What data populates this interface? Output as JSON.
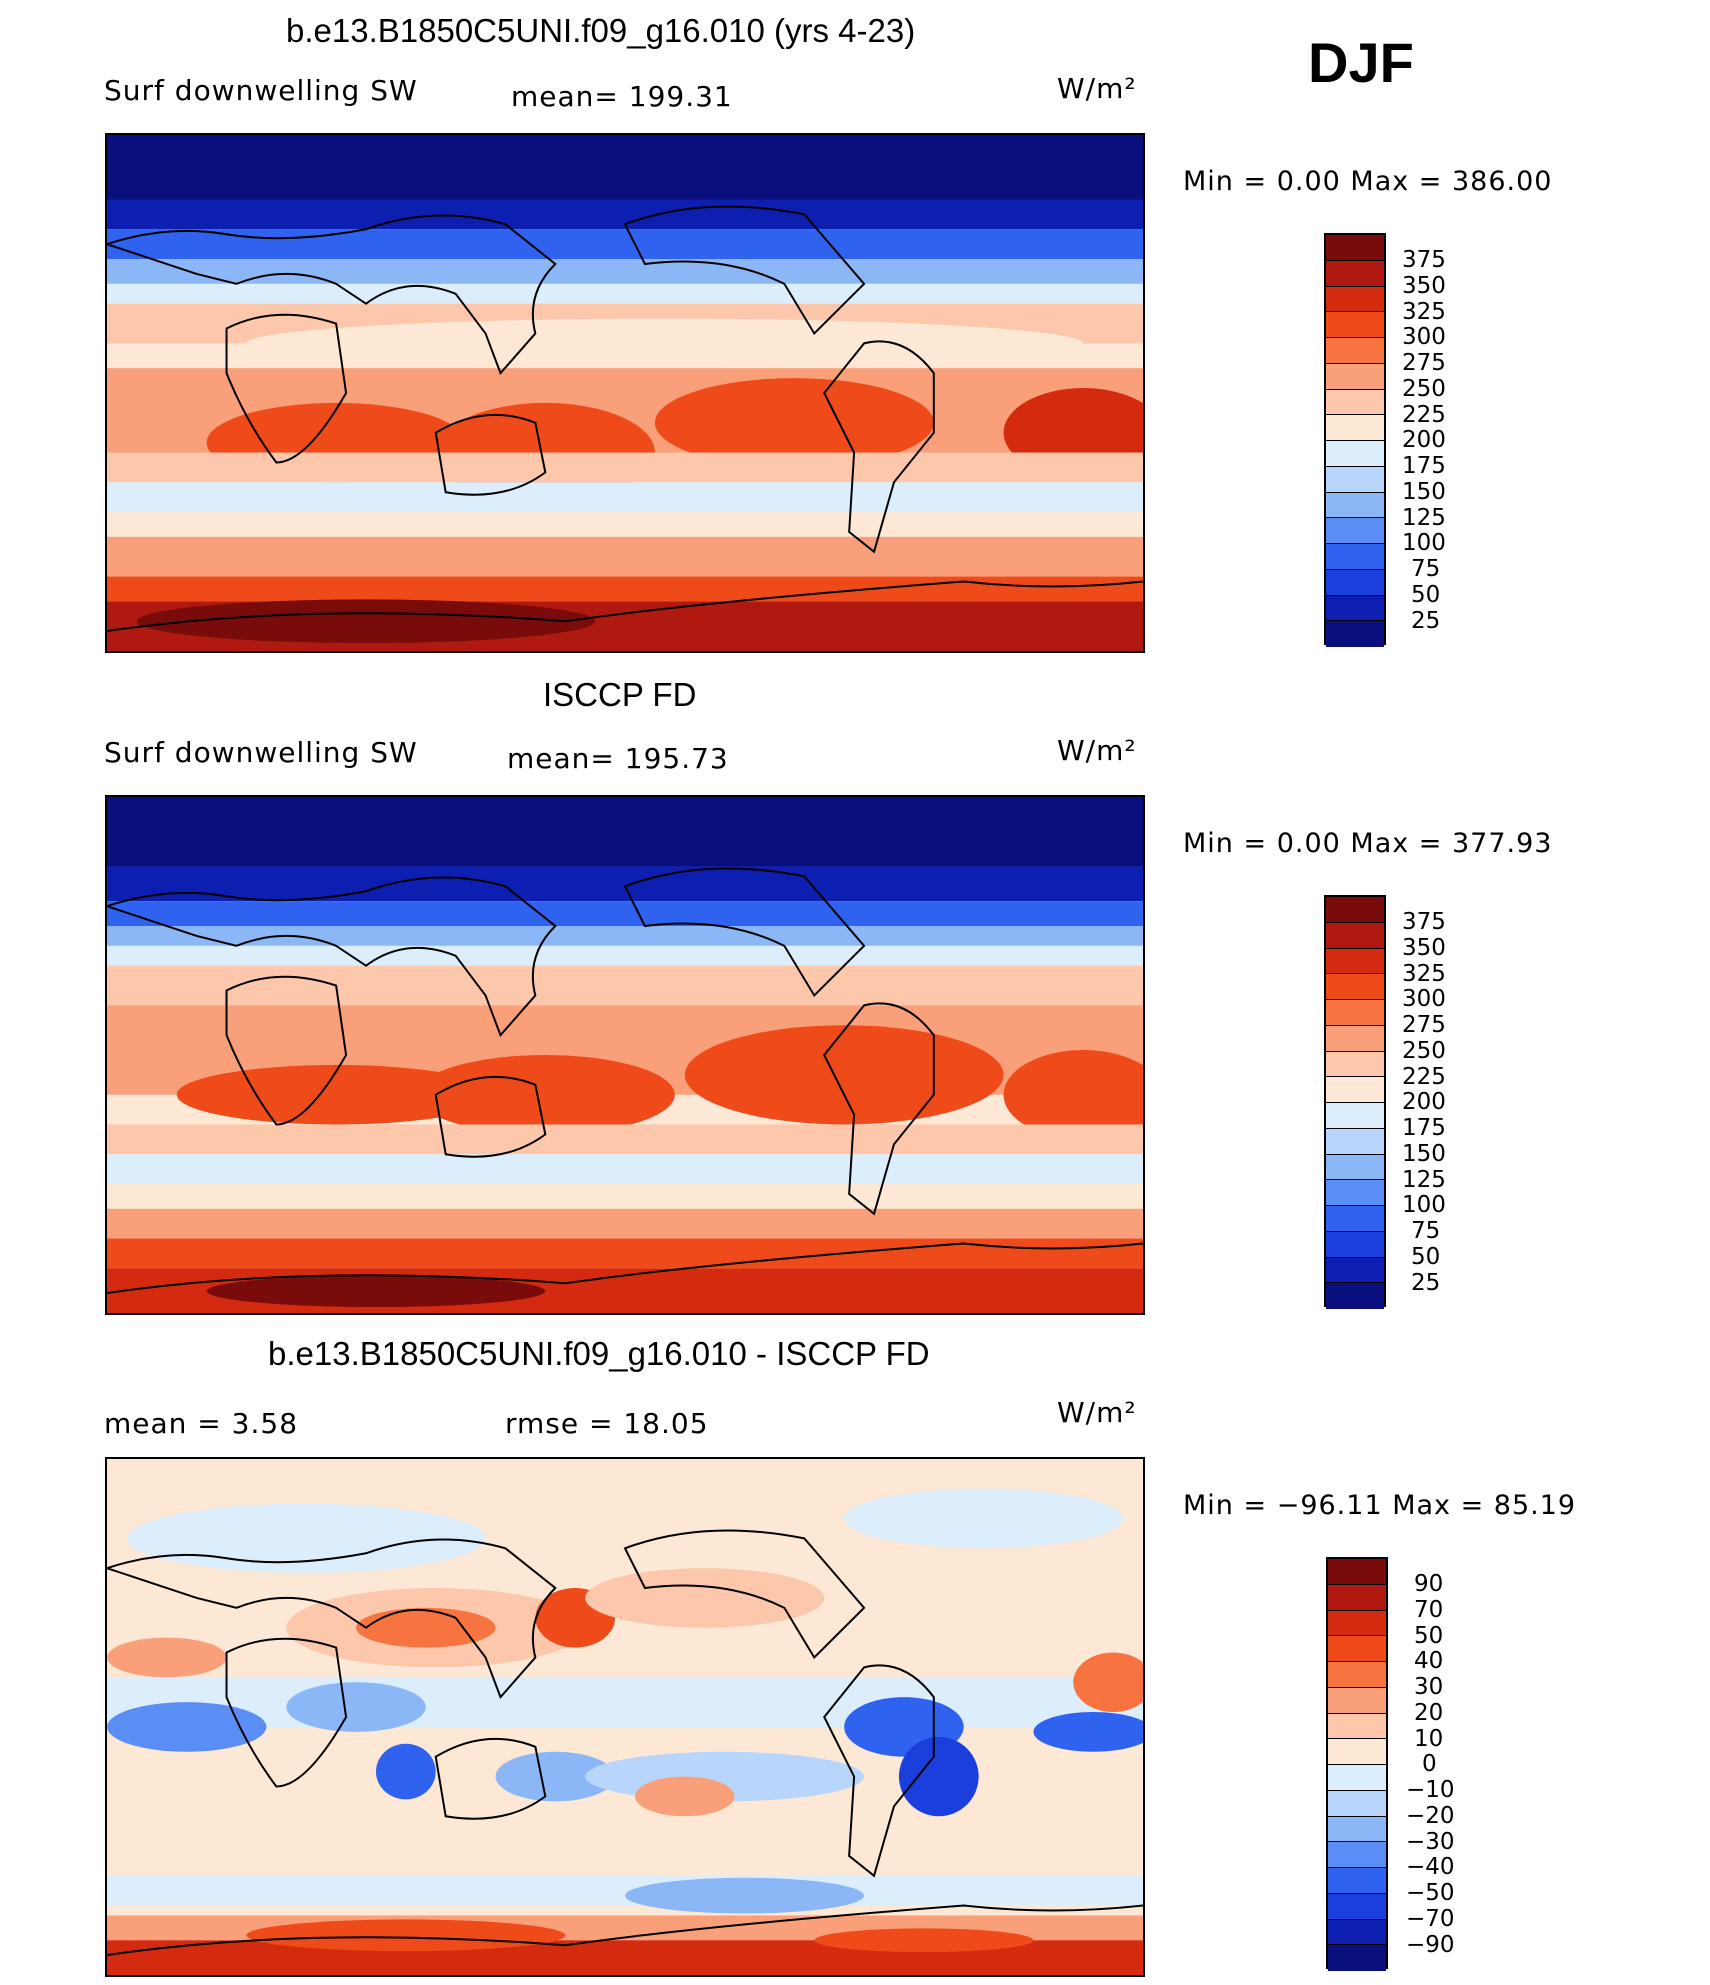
{
  "season": "DJF",
  "panels": [
    {
      "title": "b.e13.B1850C5UNI.f09_g16.010 (yrs 4-23)",
      "left_label": "Surf  downwelling  SW",
      "center_label": "mean=  199.31",
      "units": "W/m²",
      "minmax": "Min  =      0.00  Max  =  386.00",
      "colorbar_labels": [
        "375",
        "350",
        "325",
        "300",
        "275",
        "250",
        "225",
        "200",
        "175",
        "150",
        "125",
        "100",
        "75",
        "50",
        "25"
      ]
    },
    {
      "title": "ISCCP FD",
      "left_label": "Surf  downwelling  SW",
      "center_label": "mean=  195.73",
      "units": "W/m²",
      "minmax": "Min  =      0.00  Max  =  377.93",
      "colorbar_labels": [
        "375",
        "350",
        "325",
        "300",
        "275",
        "250",
        "225",
        "200",
        "175",
        "150",
        "125",
        "100",
        "75",
        "50",
        "25"
      ]
    },
    {
      "title": "b.e13.B1850C5UNI.f09_g16.010 - ISCCP FD",
      "left_label": "mean  =      3.58",
      "center_label": "rmse  =    18.05",
      "units": "W/m²",
      "minmax": "Min  =  −96.11  Max  =    85.19",
      "colorbar_labels": [
        "90",
        "70",
        "50",
        "40",
        "30",
        "20",
        "10",
        "0",
        "−10",
        "−20",
        "−30",
        "−40",
        "−50",
        "−70",
        "−90"
      ]
    }
  ],
  "colors": {
    "palette": [
      "#7a0b0b",
      "#b0190f",
      "#d42a10",
      "#ef4a1a",
      "#f7733f",
      "#f9a07a",
      "#fcc7ab",
      "#fde8d6",
      "#dceefc",
      "#b8d6fb",
      "#8cb7f7",
      "#5a8ef4",
      "#2f63ef",
      "#1a3fdc",
      "#0d1fb0",
      "#0a0f7e"
    ]
  }
}
